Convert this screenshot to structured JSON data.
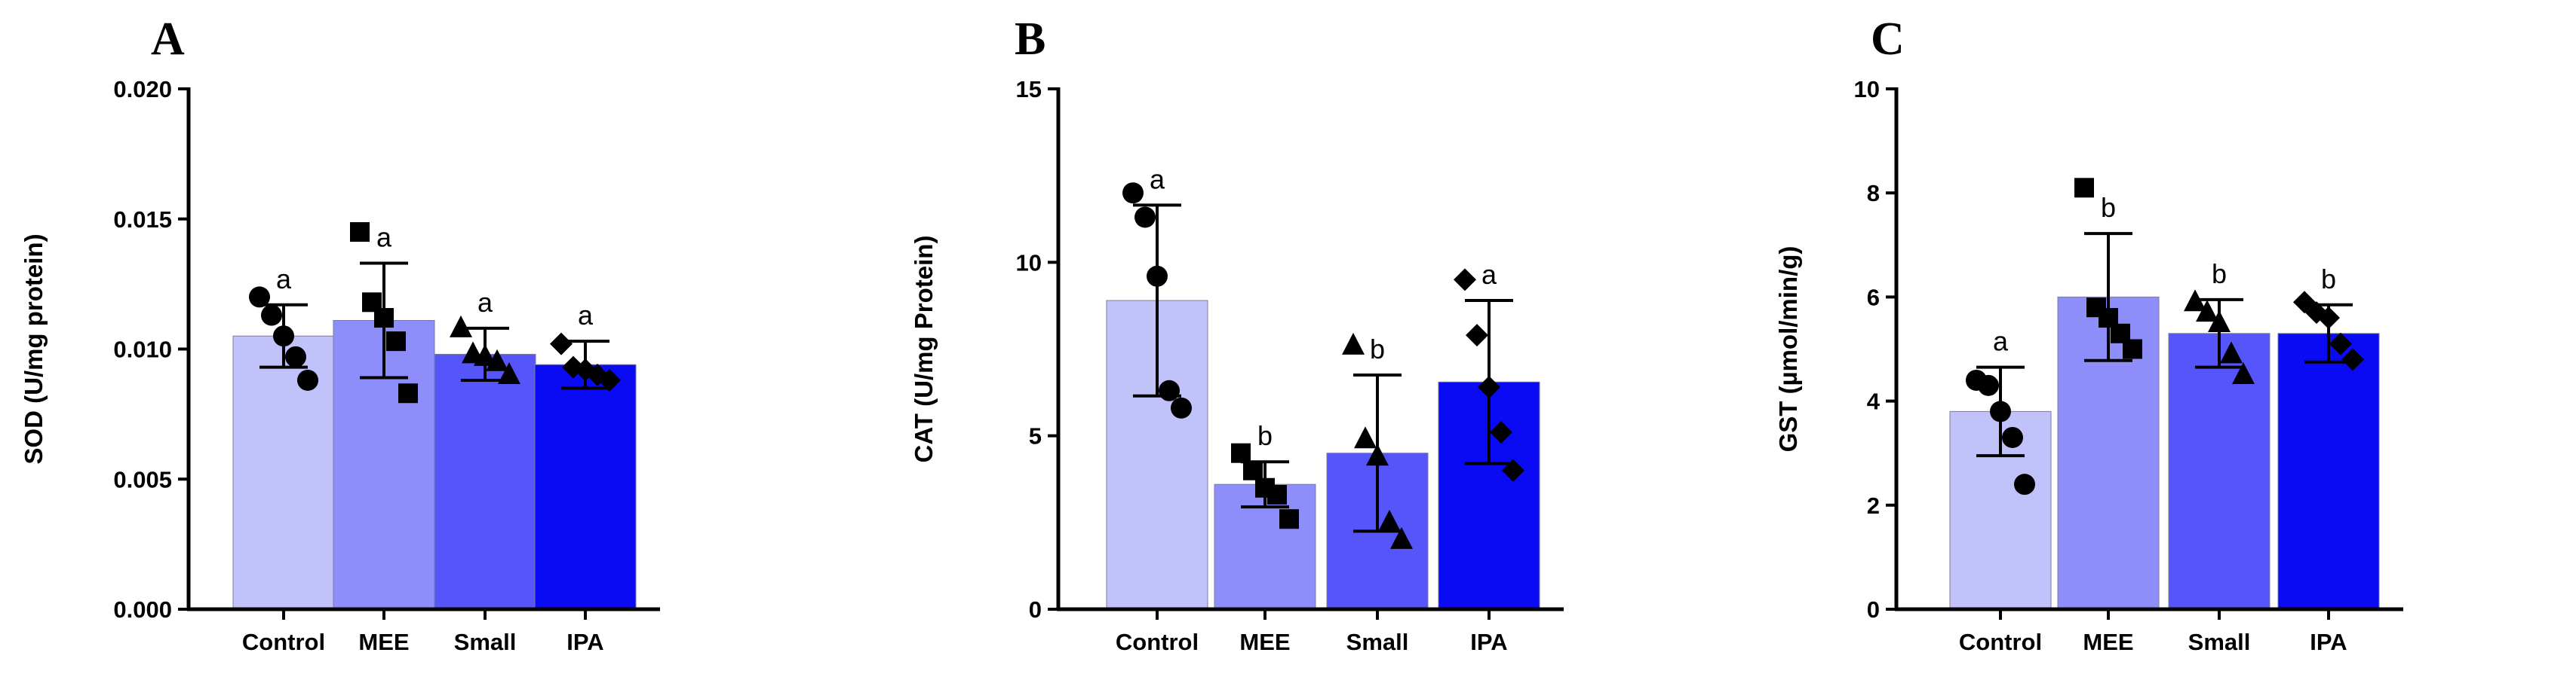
{
  "chart_data": [
    {
      "type": "bar",
      "panel": "A",
      "title": "",
      "ylabel": "SOD (U/mg protein)",
      "xlabel": "",
      "ylim": [
        0,
        0.02
      ],
      "yticks": [
        0.0,
        0.005,
        0.01,
        0.015,
        0.02
      ],
      "ytick_labels": [
        "0.000",
        "0.005",
        "0.010",
        "0.015",
        "0.020"
      ],
      "categories": [
        "Control",
        "MEE",
        "Small",
        "IPA"
      ],
      "values": [
        0.0105,
        0.0111,
        0.0098,
        0.0094
      ],
      "error": [
        0.0012,
        0.0022,
        0.001,
        0.0009
      ],
      "letters": [
        "a",
        "a",
        "a",
        "a"
      ],
      "markers": [
        "circle",
        "square",
        "triangle",
        "diamond"
      ],
      "points": [
        [
          0.012,
          0.0113,
          0.0105,
          0.0097,
          0.0088
        ],
        [
          0.0145,
          0.0118,
          0.0112,
          0.0103,
          0.0083
        ],
        [
          0.0108,
          0.0098,
          0.0097,
          0.0095,
          0.009
        ],
        [
          0.0102,
          0.0093,
          0.0092,
          0.009,
          0.0088
        ]
      ],
      "colors": [
        "#c2c2fb",
        "#8e8efb",
        "#5555fa",
        "#0a0af5"
      ]
    },
    {
      "type": "bar",
      "panel": "B",
      "title": "",
      "ylabel": "CAT (U/mg Protein)",
      "xlabel": "",
      "ylim": [
        0,
        15
      ],
      "yticks": [
        0,
        5,
        10,
        15
      ],
      "ytick_labels": [
        "0",
        "5",
        "10",
        "15"
      ],
      "categories": [
        "Control",
        "MEE",
        "Small",
        "IPA"
      ],
      "values": [
        8.9,
        3.6,
        4.5,
        6.55
      ],
      "error": [
        2.75,
        0.65,
        2.25,
        2.35
      ],
      "letters": [
        "a",
        "b",
        "b",
        "a"
      ],
      "markers": [
        "circle",
        "square",
        "triangle",
        "diamond"
      ],
      "points": [
        [
          12.0,
          11.3,
          9.6,
          6.3,
          5.8
        ],
        [
          4.5,
          4.0,
          3.5,
          3.3,
          2.6
        ],
        [
          7.6,
          4.9,
          4.4,
          2.5,
          2.0
        ],
        [
          9.5,
          7.9,
          6.4,
          5.1,
          4.0
        ]
      ],
      "colors": [
        "#c2c2fb",
        "#8e8efb",
        "#5555fa",
        "#0a0af5"
      ]
    },
    {
      "type": "bar",
      "panel": "C",
      "title": "",
      "ylabel": "GST (µmol/min/g)",
      "xlabel": "",
      "ylim": [
        0,
        10
      ],
      "yticks": [
        0,
        2,
        4,
        6,
        8,
        10
      ],
      "ytick_labels": [
        "0",
        "2",
        "4",
        "6",
        "8",
        "10"
      ],
      "categories": [
        "Control",
        "MEE",
        "Small",
        "IPA"
      ],
      "values": [
        3.8,
        6.0,
        5.3,
        5.3
      ],
      "error": [
        0.85,
        1.22,
        0.65,
        0.55
      ],
      "letters": [
        "a",
        "b",
        "b",
        "b"
      ],
      "markers": [
        "circle",
        "square",
        "triangle",
        "diamond"
      ],
      "points": [
        [
          4.4,
          4.3,
          3.8,
          3.3,
          2.4
        ],
        [
          8.1,
          5.8,
          5.6,
          5.3,
          5.0
        ],
        [
          5.9,
          5.7,
          5.5,
          4.9,
          4.5
        ],
        [
          5.9,
          5.7,
          5.6,
          5.1,
          4.8
        ]
      ],
      "colors": [
        "#c2c2fb",
        "#8e8efb",
        "#5555fa",
        "#0a0af5"
      ]
    }
  ]
}
